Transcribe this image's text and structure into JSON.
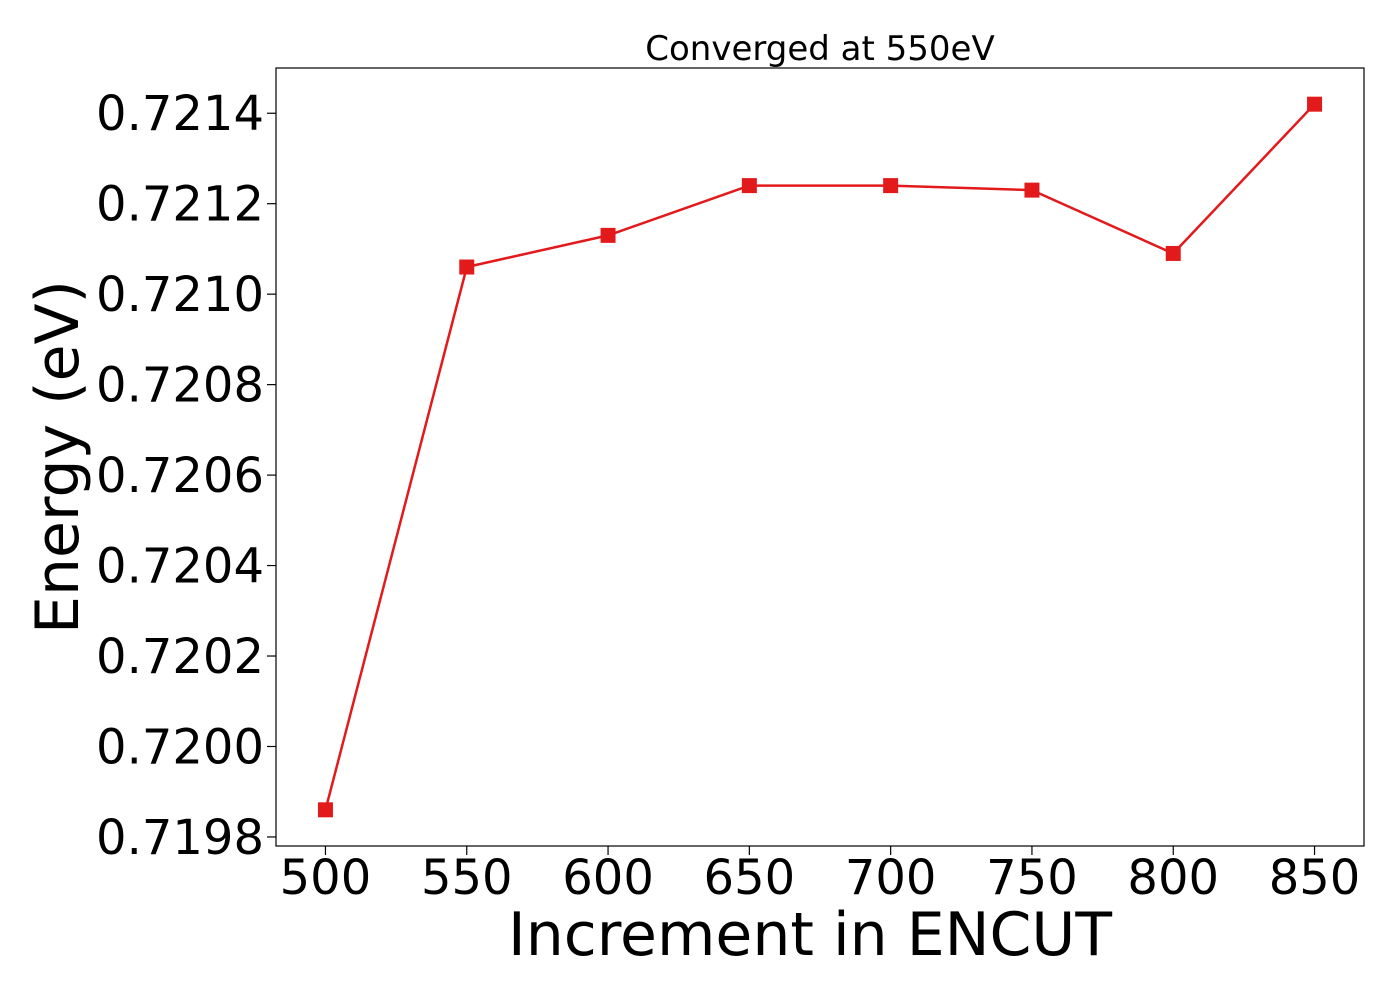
{
  "chart_data": {
    "type": "line",
    "title": "Converged at 550eV",
    "xlabel": "Increment in ENCUT",
    "ylabel": "Energy (eV)",
    "x": [
      500,
      550,
      600,
      650,
      700,
      750,
      800,
      850
    ],
    "series": [
      {
        "values": [
          0.71986,
          0.72106,
          0.72113,
          0.72124,
          0.72124,
          0.72123,
          0.72109,
          0.72142
        ],
        "color": "#e31a1c",
        "marker": "square"
      }
    ],
    "xlim": [
      482.5,
      867.5
    ],
    "ylim": [
      0.71978,
      0.7215
    ],
    "xticks": [
      500,
      550,
      600,
      650,
      700,
      750,
      800,
      850
    ],
    "xtick_labels": [
      "500",
      "550",
      "600",
      "650",
      "700",
      "750",
      "800",
      "850"
    ],
    "yticks": [
      0.7198,
      0.72,
      0.7202,
      0.7204,
      0.7206,
      0.7208,
      0.721,
      0.7212,
      0.7214
    ],
    "ytick_labels": [
      "0.7198",
      "0.7200",
      "0.7202",
      "0.7204",
      "0.7206",
      "0.7208",
      "0.7210",
      "0.7212",
      "0.7214"
    ],
    "grid": false,
    "legend": false
  }
}
